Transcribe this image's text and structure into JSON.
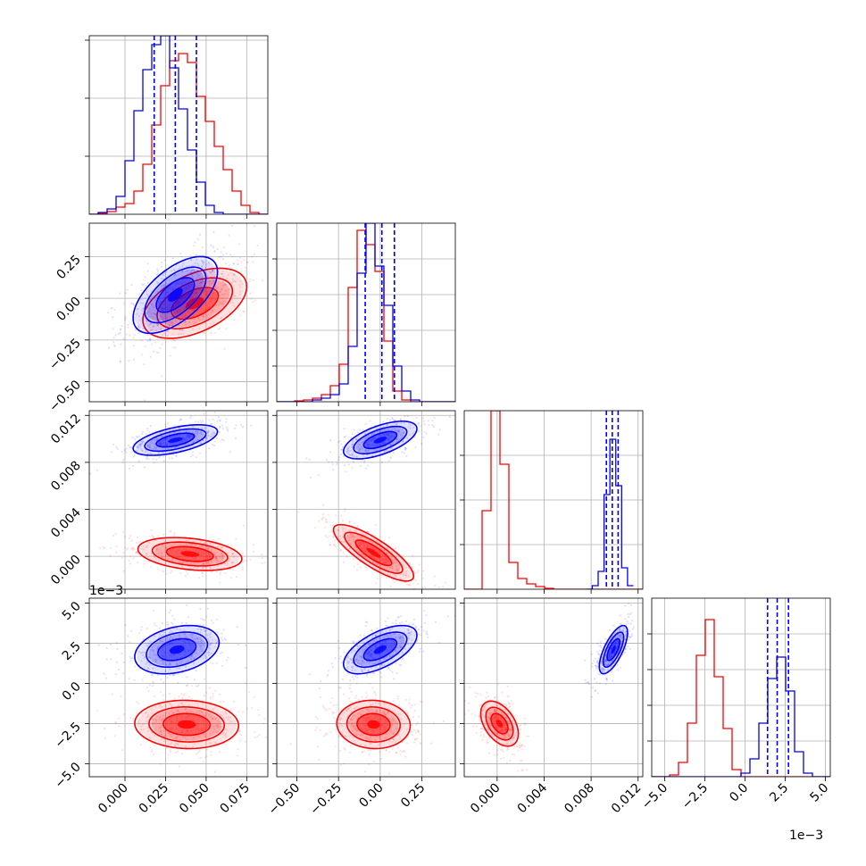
{
  "chart_data": {
    "type": "corner",
    "grid": true,
    "colors": {
      "A": "#ff0000",
      "B": "#0000ff",
      "axis": "#000000",
      "grid": "#b0b0b0"
    },
    "offset_labels": {
      "p4_y": "1e−3",
      "p4_x": "1e−3"
    },
    "params": [
      {
        "lim": [
          -0.022,
          0.088
        ],
        "ticks": [
          0.0,
          0.025,
          0.05,
          0.075
        ],
        "ticklabels": [
          "0.000",
          "0.025",
          "0.050",
          "0.075"
        ]
      },
      {
        "lim": [
          -0.62,
          0.45
        ],
        "ticks": [
          -0.5,
          -0.25,
          0.0,
          0.25
        ],
        "ticklabels": [
          "−0.50",
          "−0.25",
          "0.00",
          "0.25"
        ]
      },
      {
        "lim": [
          -0.0028,
          0.0124
        ],
        "ticks": [
          0.0,
          0.004,
          0.008,
          0.012
        ],
        "ticklabels": [
          "0.000",
          "0.004",
          "0.008",
          "0.012"
        ]
      },
      {
        "lim": [
          -5.8,
          5.3
        ],
        "ticks": [
          -5.0,
          -2.5,
          0.0,
          2.5,
          5.0
        ],
        "ticklabels": [
          "−5.0",
          "−2.5",
          "0.0",
          "2.5",
          "5.0"
        ]
      }
    ],
    "hist1d": [
      {
        "yticks": [
          0.325,
          0.65,
          0.975
        ],
        "ymax": 1.0,
        "bins_min": -0.022,
        "bins_max": 0.088,
        "A": [
          0.0,
          0.005,
          0.015,
          0.04,
          0.06,
          0.13,
          0.28,
          0.5,
          0.72,
          0.86,
          0.9,
          0.85,
          0.66,
          0.52,
          0.38,
          0.25,
          0.13,
          0.05,
          0.01,
          0.0
        ],
        "B": [
          0.0,
          0.01,
          0.03,
          0.1,
          0.3,
          0.58,
          0.81,
          0.95,
          1.0,
          0.82,
          0.59,
          0.36,
          0.18,
          0.05,
          0.01,
          0.0,
          0.0,
          0.0,
          0.0,
          0.0
        ],
        "quantiles": [
          0.018,
          0.031,
          0.044
        ]
      },
      {
        "yticks": [
          0.2,
          0.4,
          0.6,
          0.8
        ],
        "ymax": 1.0,
        "bins_min": -0.62,
        "bins_max": 0.45,
        "A": [
          0.0,
          0.0,
          0.005,
          0.01,
          0.02,
          0.04,
          0.09,
          0.21,
          0.64,
          0.96,
          0.88,
          0.73,
          0.34,
          0.06,
          0.01,
          0.0,
          0.0,
          0.0,
          0.0,
          0.0
        ],
        "B": [
          0.0,
          0.0,
          0.0,
          0.0,
          0.01,
          0.02,
          0.04,
          0.1,
          0.31,
          0.72,
          1.0,
          0.76,
          0.54,
          0.2,
          0.06,
          0.01,
          0.0,
          0.0,
          0.0,
          0.0
        ],
        "quantiles": [
          -0.09,
          0.01,
          0.085
        ]
      },
      {
        "yticks": [
          0.25,
          0.5,
          0.75
        ],
        "ymax": 1.0,
        "bins_min": -0.0028,
        "bins_max": 0.0124,
        "A": [
          0.0,
          0.0,
          0.44,
          1.0,
          0.7,
          0.15,
          0.06,
          0.03,
          0.015,
          0.005,
          0.0,
          0.0,
          0.0,
          0.0,
          0.0,
          0.0,
          0.0,
          0.0,
          0.0,
          0.0
        ],
        "B": [
          0.0,
          0.0,
          0.0,
          0.0,
          0.0,
          0.0,
          0.0,
          0.0,
          0.0,
          0.0,
          0.0,
          0.0,
          0.0,
          0.0,
          0.0,
          0.0,
          0.0,
          0.0,
          0.0,
          0.0
        ],
        "B_fine": [
          [
            0.0076,
            0.0
          ],
          [
            0.0081,
            0.02
          ],
          [
            0.0086,
            0.1
          ],
          [
            0.0091,
            0.53
          ],
          [
            0.0096,
            0.84
          ],
          [
            0.0101,
            0.58
          ],
          [
            0.0106,
            0.12
          ],
          [
            0.0111,
            0.02
          ],
          [
            0.0116,
            0.0
          ]
        ],
        "quantiles": [
          0.0093,
          0.0098,
          0.0103
        ]
      },
      {
        "yticks": [
          0.2,
          0.4,
          0.6,
          0.8
        ],
        "ymax": 1.0,
        "bins_min": -5.8,
        "bins_max": 5.3,
        "A": [
          0.0,
          0.0,
          0.01,
          0.08,
          0.3,
          0.68,
          0.88,
          0.56,
          0.27,
          0.04,
          0.0,
          0.0,
          0.0,
          0.0,
          0.0,
          0.0,
          0.0,
          0.0,
          0.0,
          0.0
        ],
        "B": [
          0.0,
          0.0,
          0.0,
          0.0,
          0.0,
          0.0,
          0.0,
          0.0,
          0.0,
          0.0,
          0.02,
          0.1,
          0.3,
          0.55,
          0.67,
          0.48,
          0.14,
          0.02,
          0.0,
          0.0
        ],
        "quantiles": [
          1.4,
          2.0,
          2.7
        ]
      }
    ],
    "pairs": [
      {
        "row": 1,
        "col": 0,
        "A": {
          "mean": [
            0.043,
            -0.03
          ],
          "sd": [
            0.016,
            0.105
          ],
          "rho": 0.48
        },
        "B": {
          "mean": [
            0.031,
            0.02
          ],
          "sd": [
            0.013,
            0.115
          ],
          "rho": 0.6
        }
      },
      {
        "row": 2,
        "col": 0,
        "A": {
          "mean": [
            0.04,
            0.0002
          ],
          "sd": [
            0.016,
            0.0007
          ],
          "rho": -0.3
        },
        "B": {
          "mean": [
            0.031,
            0.0099
          ],
          "sd": [
            0.013,
            0.00065
          ],
          "rho": 0.55
        }
      },
      {
        "row": 2,
        "col": 1,
        "A": {
          "mean": [
            -0.04,
            0.0003
          ],
          "sd": [
            0.12,
            0.0012
          ],
          "rho": -0.82
        },
        "B": {
          "mean": [
            0.0,
            0.0099
          ],
          "sd": [
            0.11,
            0.0008
          ],
          "rho": 0.6
        }
      },
      {
        "row": 3,
        "col": 0,
        "A": {
          "mean": [
            0.038,
            -2.55
          ],
          "sd": [
            0.016,
            0.75
          ],
          "rho": -0.05
        },
        "B": {
          "mean": [
            0.032,
            2.1
          ],
          "sd": [
            0.013,
            0.75
          ],
          "rho": 0.3
        }
      },
      {
        "row": 3,
        "col": 1,
        "A": {
          "mean": [
            -0.04,
            -2.55
          ],
          "sd": [
            0.11,
            0.75
          ],
          "rho": -0.05
        },
        "B": {
          "mean": [
            0.0,
            2.1
          ],
          "sd": [
            0.11,
            0.75
          ],
          "rho": 0.6
        }
      },
      {
        "row": 3,
        "col": 2,
        "A": {
          "mean": [
            0.0002,
            -2.5
          ],
          "sd": [
            0.0008,
            0.7
          ],
          "rho": -0.45
        },
        "B": {
          "mean": [
            0.0099,
            2.1
          ],
          "sd": [
            0.0006,
            0.75
          ],
          "rho": 0.7
        }
      }
    ]
  }
}
